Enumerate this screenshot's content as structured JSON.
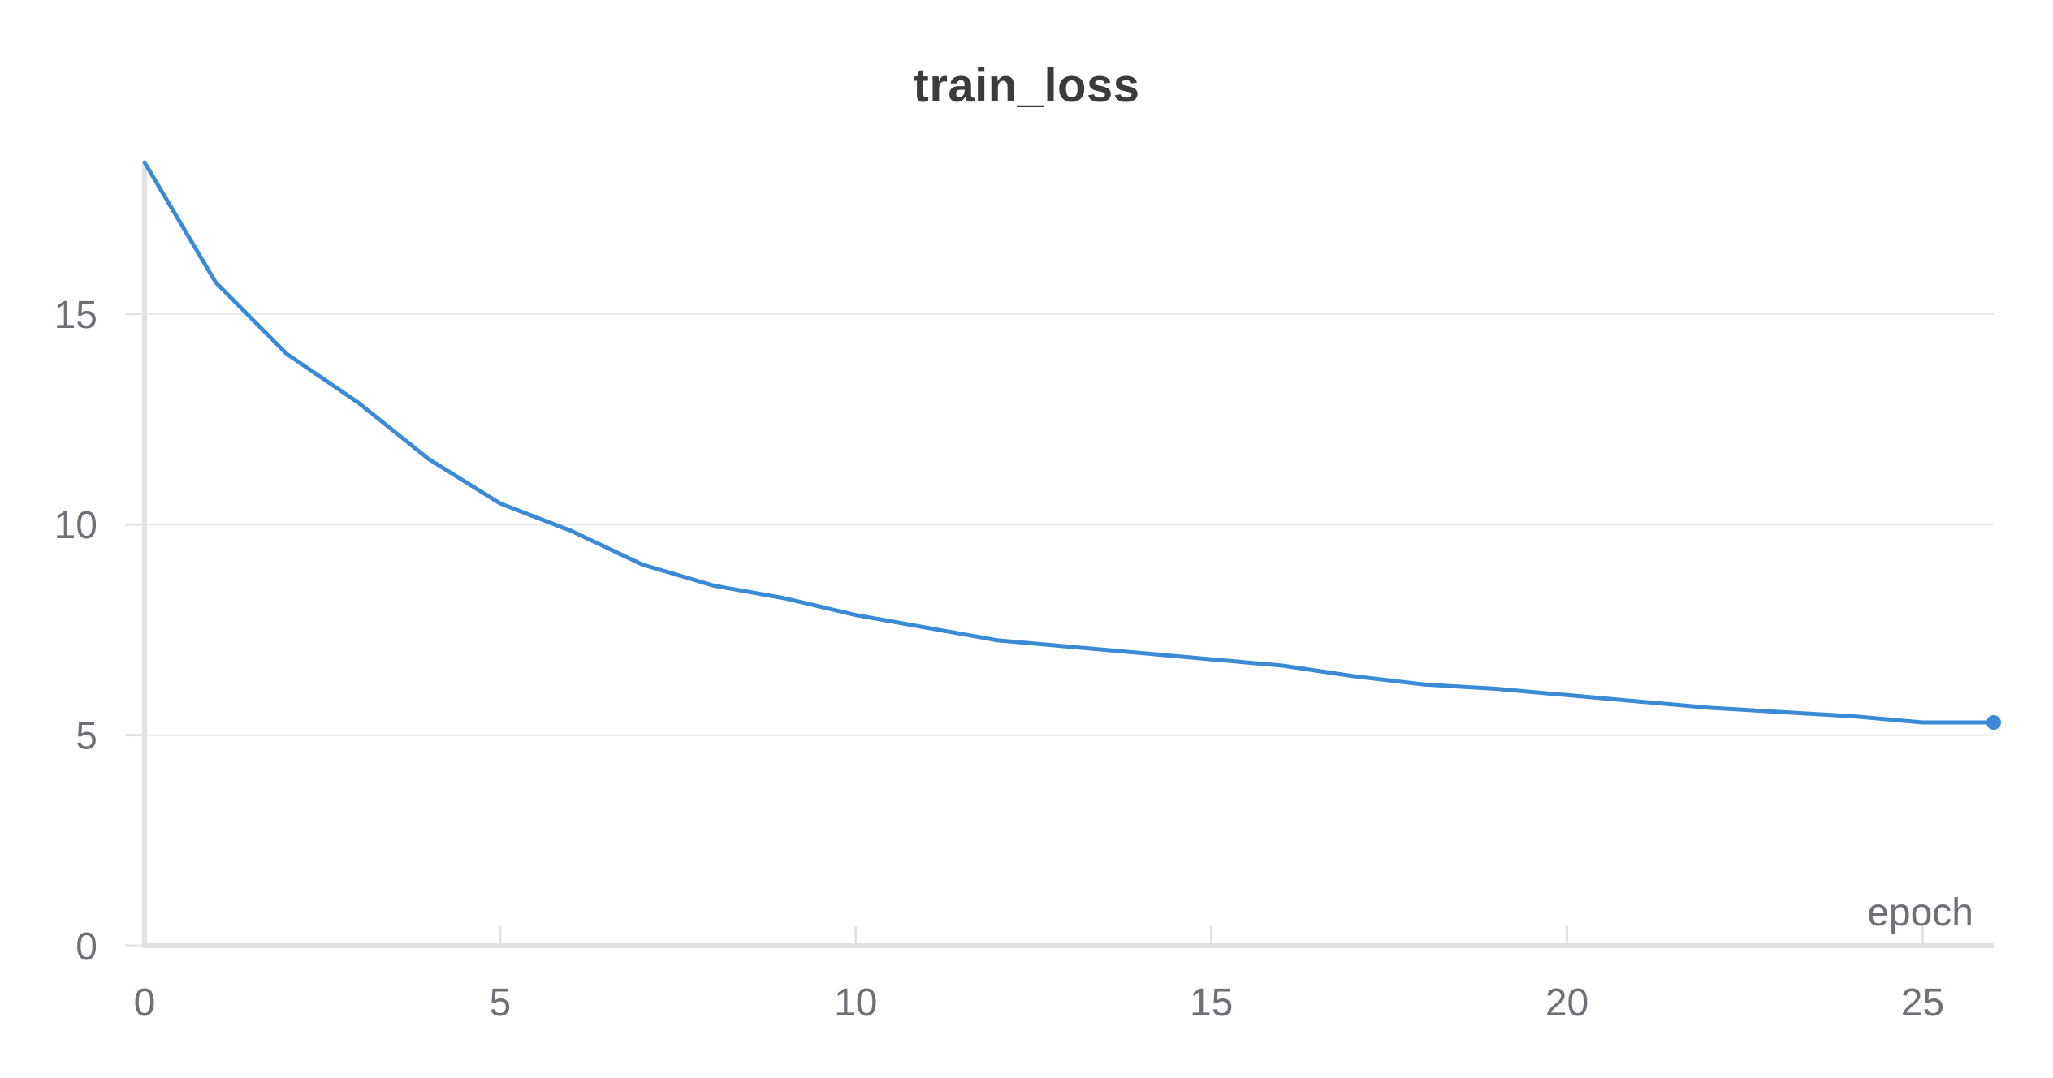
{
  "chart_data": {
    "type": "line",
    "title": "train_loss",
    "xlabel": "epoch",
    "ylabel": "",
    "xlim": [
      0,
      26
    ],
    "ylim": [
      0,
      18.6
    ],
    "x_ticks": [
      0,
      5,
      10,
      15,
      20,
      25
    ],
    "y_ticks": [
      0,
      5,
      10,
      15
    ],
    "grid": "horizontal",
    "legend": "none",
    "end_marker": true,
    "colors": {
      "line": "#3a8ad6",
      "grid": "#e8e8ea",
      "axis": "#e2e2e5",
      "text": "#6f6f78",
      "title": "#3b3b3e"
    },
    "series": [
      {
        "x": [
          0,
          1,
          2,
          3,
          4,
          5,
          6,
          7,
          8,
          9,
          10,
          11,
          12,
          13,
          14,
          15,
          16,
          17,
          18,
          19,
          20,
          21,
          22,
          23,
          24,
          25,
          26
        ],
        "values": [
          18.6,
          15.75,
          14.05,
          12.9,
          11.55,
          10.5,
          9.85,
          9.05,
          8.55,
          8.25,
          7.85,
          7.55,
          7.25,
          7.1,
          6.95,
          6.8,
          6.65,
          6.4,
          6.2,
          6.1,
          5.95,
          5.8,
          5.65,
          5.55,
          5.45,
          5.3,
          5.3
        ]
      }
    ]
  }
}
